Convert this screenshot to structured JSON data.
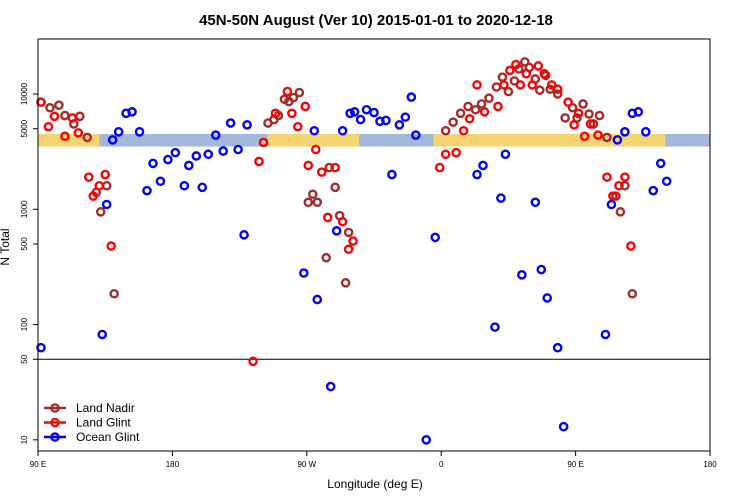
{
  "chart_data": {
    "type": "scatter",
    "title": "45N-50N August (Ver 10)   2015-01-01 to 2020-12-18",
    "xlabel": "Longitude (deg E)",
    "ylabel": "N Total",
    "x_scale": "linear",
    "y_scale": "log",
    "xlim": [
      90,
      540
    ],
    "ylim": [
      8,
      30000
    ],
    "x_ticks": [
      {
        "value": 90,
        "label": "90 E"
      },
      {
        "value": 180,
        "label": "180"
      },
      {
        "value": 270,
        "label": "90 W"
      },
      {
        "value": 360,
        "label": "0"
      },
      {
        "value": 450,
        "label": "90 E"
      },
      {
        "value": 540,
        "label": "180"
      }
    ],
    "y_ticks": [
      {
        "value": 10,
        "label": "10"
      },
      {
        "value": 50,
        "label": "50"
      },
      {
        "value": 100,
        "label": "100"
      },
      {
        "value": 500,
        "label": "500"
      },
      {
        "value": 1000,
        "label": "1000"
      },
      {
        "value": 5000,
        "label": "5000"
      },
      {
        "value": 10000,
        "label": "10000"
      }
    ],
    "reference_line": {
      "y": 50
    },
    "band": {
      "y_low": 3500,
      "y_high": 4500,
      "segments": [
        {
          "x_start": 90,
          "x_end": 131,
          "color": "#f5d472"
        },
        {
          "x_start": 131,
          "x_end": 244,
          "color": "#a2b8dc"
        },
        {
          "x_start": 244,
          "x_end": 305,
          "color": "#f5d472"
        },
        {
          "x_start": 305,
          "x_end": 355,
          "color": "#a2b8dc"
        },
        {
          "x_start": 355,
          "x_end": 510,
          "color": "#f5d472"
        },
        {
          "x_start": 510,
          "x_end": 540,
          "color": "#a2b8dc"
        }
      ]
    },
    "legend": {
      "position": "bottom-left"
    },
    "series": [
      {
        "name": "Land Nadir",
        "color": "#a52a2a",
        "points": [
          [
            92,
            8500
          ],
          [
            98,
            7600
          ],
          [
            104,
            8000
          ],
          [
            108,
            6500
          ],
          [
            114,
            5500
          ],
          [
            118,
            6400
          ],
          [
            123,
            4200
          ],
          [
            129,
            1400
          ],
          [
            132,
            950
          ],
          [
            136,
            1600
          ],
          [
            141,
            185
          ],
          [
            244,
            5600
          ],
          [
            248,
            6000
          ],
          [
            251,
            6500
          ],
          [
            255,
            9000
          ],
          [
            258,
            8600
          ],
          [
            261,
            9300
          ],
          [
            265,
            10300
          ],
          [
            271,
            1150
          ],
          [
            274,
            1350
          ],
          [
            277,
            1150
          ],
          [
            283,
            380
          ],
          [
            285,
            2300
          ],
          [
            289,
            1550
          ],
          [
            292,
            880
          ],
          [
            296,
            230
          ],
          [
            298,
            630
          ],
          [
            363,
            4800
          ],
          [
            368,
            5700
          ],
          [
            373,
            6800
          ],
          [
            378,
            7800
          ],
          [
            383,
            7300
          ],
          [
            387,
            8200
          ],
          [
            392,
            9200
          ],
          [
            397,
            11500
          ],
          [
            401,
            14000
          ],
          [
            405,
            10500
          ],
          [
            409,
            13000
          ],
          [
            412,
            16500
          ],
          [
            416,
            19000
          ],
          [
            419,
            17000
          ],
          [
            423,
            13500
          ],
          [
            426,
            10800
          ],
          [
            430,
            14500
          ],
          [
            433,
            11000
          ],
          [
            438,
            10000
          ],
          [
            443,
            6200
          ],
          [
            448,
            7600
          ],
          [
            451,
            6200
          ],
          [
            455,
            8200
          ],
          [
            459,
            6700
          ],
          [
            462,
            5500
          ],
          [
            466,
            6500
          ],
          [
            471,
            4200
          ],
          [
            477,
            1300
          ],
          [
            480,
            950
          ],
          [
            483,
            1600
          ],
          [
            488,
            185
          ]
        ]
      },
      {
        "name": "Land Glint",
        "color": "#ff0000",
        "points": [
          [
            92,
            8500
          ],
          [
            97,
            5200
          ],
          [
            101,
            6400
          ],
          [
            108,
            4300
          ],
          [
            113,
            6200
          ],
          [
            117,
            4600
          ],
          [
            124,
            1900
          ],
          [
            127,
            1300
          ],
          [
            131,
            1600
          ],
          [
            135,
            2000
          ],
          [
            139,
            480
          ],
          [
            234,
            48
          ],
          [
            238,
            2600
          ],
          [
            241,
            3800
          ],
          [
            249,
            6800
          ],
          [
            257,
            10500
          ],
          [
            260,
            6800
          ],
          [
            264,
            5200
          ],
          [
            269,
            7800
          ],
          [
            271,
            2400
          ],
          [
            276,
            3300
          ],
          [
            280,
            2100
          ],
          [
            284,
            850
          ],
          [
            289,
            2300
          ],
          [
            294,
            780
          ],
          [
            298,
            450
          ],
          [
            301,
            530
          ],
          [
            359,
            2300
          ],
          [
            363,
            3000
          ],
          [
            370,
            3100
          ],
          [
            375,
            4800
          ],
          [
            379,
            6100
          ],
          [
            384,
            12000
          ],
          [
            389,
            7000
          ],
          [
            398,
            7800
          ],
          [
            402,
            12000
          ],
          [
            406,
            16000
          ],
          [
            410,
            18000
          ],
          [
            413,
            12000
          ],
          [
            417,
            15000
          ],
          [
            421,
            12000
          ],
          [
            425,
            17500
          ],
          [
            429,
            15000
          ],
          [
            434,
            12000
          ],
          [
            438,
            11000
          ],
          [
            445,
            8500
          ],
          [
            449,
            5400
          ],
          [
            452,
            6800
          ],
          [
            456,
            4300
          ],
          [
            460,
            5500
          ],
          [
            465,
            4400
          ],
          [
            471,
            1900
          ],
          [
            475,
            1300
          ],
          [
            479,
            1600
          ],
          [
            483,
            1900
          ],
          [
            487,
            480
          ]
        ]
      },
      {
        "name": "Ocean Glint",
        "color": "#0000ff",
        "points": [
          [
            92,
            63
          ],
          [
            133,
            82
          ],
          [
            136,
            1100
          ],
          [
            140,
            4000
          ],
          [
            144,
            4700
          ],
          [
            149,
            6800
          ],
          [
            153,
            7000
          ],
          [
            158,
            4700
          ],
          [
            163,
            1450
          ],
          [
            167,
            2500
          ],
          [
            172,
            1750
          ],
          [
            177,
            2700
          ],
          [
            182,
            3100
          ],
          [
            188,
            1600
          ],
          [
            191,
            2400
          ],
          [
            196,
            2900
          ],
          [
            200,
            1550
          ],
          [
            204,
            3000
          ],
          [
            209,
            4400
          ],
          [
            214,
            3200
          ],
          [
            219,
            5600
          ],
          [
            224,
            3300
          ],
          [
            228,
            600
          ],
          [
            230,
            5400
          ],
          [
            268,
            280
          ],
          [
            275,
            4800
          ],
          [
            277,
            165
          ],
          [
            286,
            29
          ],
          [
            290,
            650
          ],
          [
            294,
            4800
          ],
          [
            299,
            6800
          ],
          [
            302,
            7000
          ],
          [
            306,
            6000
          ],
          [
            310,
            7300
          ],
          [
            315,
            6900
          ],
          [
            319,
            5800
          ],
          [
            323,
            5900
          ],
          [
            327,
            2000
          ],
          [
            332,
            5400
          ],
          [
            336,
            6300
          ],
          [
            340,
            9400
          ],
          [
            343,
            4400
          ],
          [
            350,
            10
          ],
          [
            356,
            570
          ],
          [
            384,
            2000
          ],
          [
            388,
            2400
          ],
          [
            396,
            95
          ],
          [
            400,
            1250
          ],
          [
            403,
            3000
          ],
          [
            414,
            270
          ],
          [
            423,
            1150
          ],
          [
            427,
            300
          ],
          [
            431,
            170
          ],
          [
            438,
            63
          ],
          [
            442,
            13
          ],
          [
            470,
            82
          ],
          [
            474,
            1100
          ],
          [
            478,
            4000
          ],
          [
            483,
            4700
          ],
          [
            488,
            6800
          ],
          [
            492,
            7000
          ],
          [
            497,
            4700
          ],
          [
            502,
            1450
          ],
          [
            507,
            2500
          ],
          [
            511,
            1750
          ]
        ]
      }
    ]
  }
}
